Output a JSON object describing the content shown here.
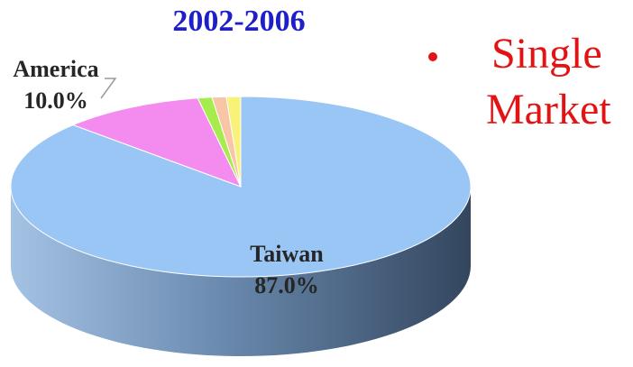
{
  "chart_data": {
    "type": "pie",
    "title": "2002-2006",
    "categories": [
      "Taiwan",
      "America",
      null,
      null,
      null
    ],
    "values": [
      87,
      10,
      1,
      1,
      1
    ],
    "value_labels": [
      "87.0%",
      "10.0%",
      null,
      null,
      null
    ],
    "colors": [
      "#99c6f5",
      "#f48cf0",
      "#a6ec4c",
      "#f8c6a6",
      "#f8f27a"
    ],
    "bullet_text": [
      "Single",
      "Market"
    ]
  }
}
